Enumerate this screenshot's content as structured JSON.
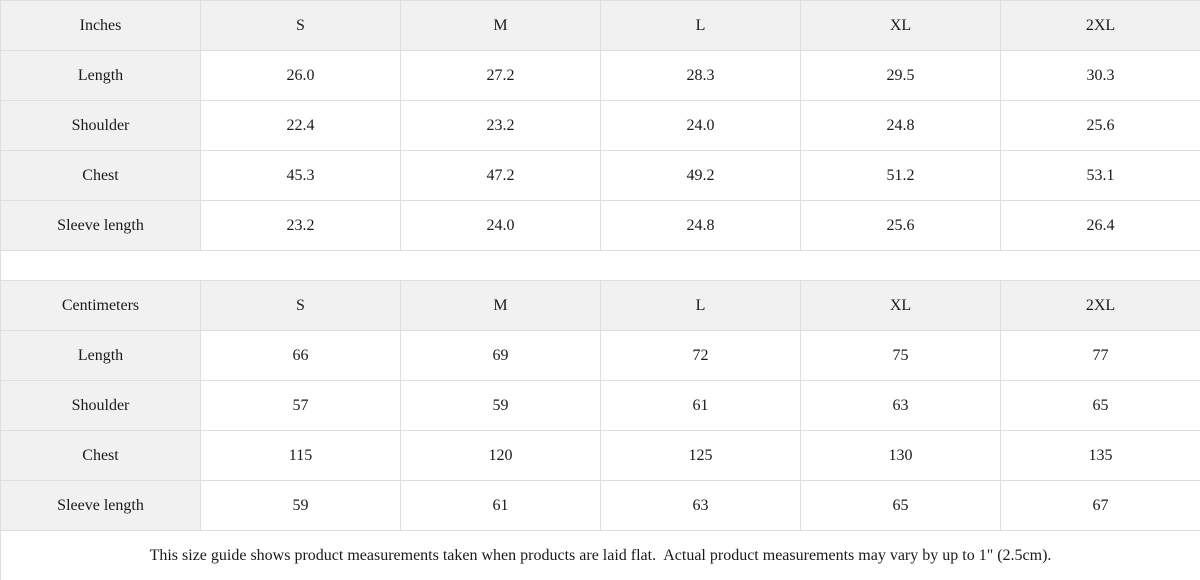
{
  "chart_data": [
    {
      "type": "table",
      "title": "Inches",
      "columns": [
        "Inches",
        "S",
        "M",
        "L",
        "XL",
        "2XL"
      ],
      "rows": [
        [
          "Length",
          "26.0",
          "27.2",
          "28.3",
          "29.5",
          "30.3"
        ],
        [
          "Shoulder",
          "22.4",
          "23.2",
          "24.0",
          "24.8",
          "25.6"
        ],
        [
          "Chest",
          "45.3",
          "47.2",
          "49.2",
          "51.2",
          "53.1"
        ],
        [
          "Sleeve length",
          "23.2",
          "24.0",
          "24.8",
          "25.6",
          "26.4"
        ]
      ]
    },
    {
      "type": "table",
      "title": "Centimeters",
      "columns": [
        "Centimeters",
        "S",
        "M",
        "L",
        "XL",
        "2XL"
      ],
      "rows": [
        [
          "Length",
          "66",
          "69",
          "72",
          "75",
          "77"
        ],
        [
          "Shoulder",
          "57",
          "59",
          "61",
          "63",
          "65"
        ],
        [
          "Chest",
          "115",
          "120",
          "125",
          "130",
          "135"
        ],
        [
          "Sleeve length",
          "59",
          "61",
          "63",
          "65",
          "67"
        ]
      ]
    }
  ],
  "footer": {
    "note": "This size guide shows product measurements taken when products are laid flat.  Actual product measurements may vary by up to 1\" (2.5cm)."
  },
  "colors": {
    "header_bg": "#f1f1f1",
    "border": "#dedede",
    "text": "#1a1a1a"
  }
}
